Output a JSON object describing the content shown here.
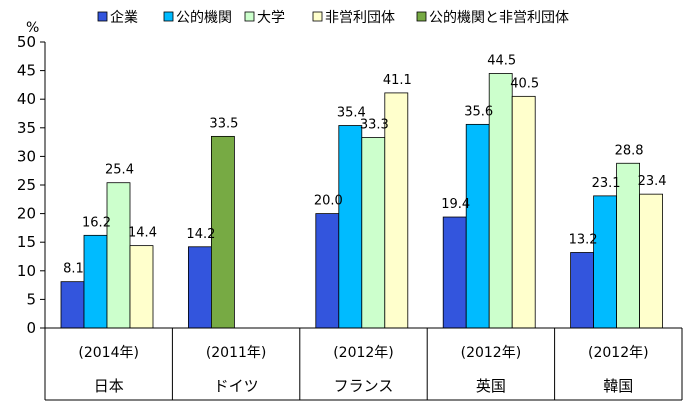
{
  "chart_data": {
    "type": "bar",
    "y_unit": "%",
    "ylim": [
      0,
      50
    ],
    "yticks": [
      0,
      5,
      10,
      15,
      20,
      25,
      30,
      35,
      40,
      45,
      50
    ],
    "grid": false,
    "legend_position": "top",
    "groups": [
      {
        "period": "(2014年)",
        "country": "日本"
      },
      {
        "period": "(2011年)",
        "country": "ドイツ"
      },
      {
        "period": "(2012年)",
        "country": "フランス"
      },
      {
        "period": "(2012年)",
        "country": "英国"
      },
      {
        "period": "(2012年)",
        "country": "韓国"
      }
    ],
    "series": [
      {
        "name": "企業",
        "color": "#3355dd",
        "values": [
          8.1,
          14.2,
          20.0,
          19.4,
          13.2
        ]
      },
      {
        "name": "公的機関",
        "color": "#00bbff",
        "values": [
          16.2,
          null,
          35.4,
          35.6,
          23.1
        ]
      },
      {
        "name": "大学",
        "color": "#ccffcc",
        "values": [
          25.4,
          null,
          33.3,
          44.5,
          28.8
        ]
      },
      {
        "name": "非営利団体",
        "color": "#ffffcc",
        "values": [
          14.4,
          null,
          41.1,
          40.5,
          23.4
        ]
      },
      {
        "name": "公的機関と非営利団体",
        "color": "#77aa44",
        "values": [
          null,
          33.5,
          null,
          null,
          null
        ]
      }
    ],
    "data_labels": [
      [
        "8.1",
        "14.2",
        "20.0",
        "19.4",
        "13.2"
      ],
      [
        "16.2",
        null,
        "35.4",
        "35.6",
        "23.1"
      ],
      [
        "25.4",
        null,
        "33.3",
        "44.5",
        "28.8"
      ],
      [
        "14.4",
        null,
        "41.1",
        "40.5",
        "23.4"
      ],
      [
        null,
        "33.5",
        null,
        null,
        null
      ]
    ]
  }
}
